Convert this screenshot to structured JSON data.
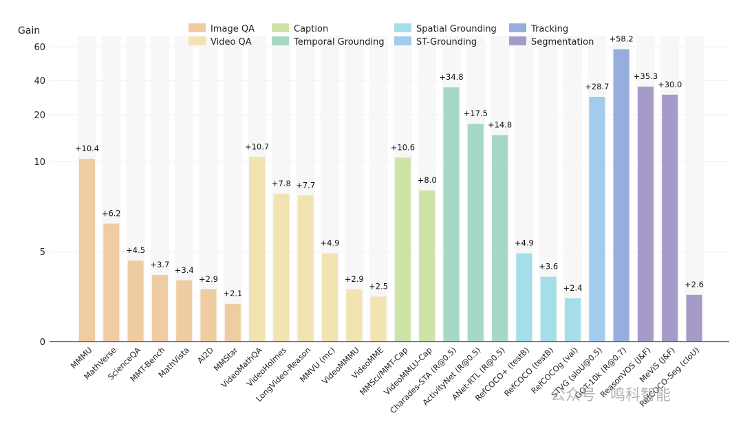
{
  "chart_data": {
    "type": "bar",
    "ylabel": "Gain",
    "xlabel": "",
    "yscale": "piecewise-log",
    "yticks": [
      0,
      5,
      10,
      20,
      40,
      60
    ],
    "ylim": [
      0,
      60
    ],
    "grid": true,
    "legend": {
      "placement": "top-center",
      "entries": [
        {
          "name": "Image QA",
          "color": "#efcca2"
        },
        {
          "name": "Video QA",
          "color": "#f2e3b3"
        },
        {
          "name": "Caption",
          "color": "#cfe3a6"
        },
        {
          "name": "Temporal Grounding",
          "color": "#a6d9c5"
        },
        {
          "name": "Spatial Grounding",
          "color": "#a4dfe9"
        },
        {
          "name": "ST-Grounding",
          "color": "#a3cbee"
        },
        {
          "name": "Tracking",
          "color": "#97aedc"
        },
        {
          "name": "Segmentation",
          "color": "#a69ac9"
        }
      ]
    },
    "categories": [
      "MMMU",
      "MathVerse",
      "ScienceQA",
      "MMT-Bench",
      "MathVista",
      "AI2D",
      "MMStar",
      "VideoMathQA",
      "VideoHolmes",
      "LongVideo-Reason",
      "MMVU (mc)",
      "VideoMMMU",
      "VideoMME",
      "MMSci/MMT-Cap",
      "VideoMMLU-Cap",
      "Charades-STA (R@0.5)",
      "ActivityNet (R@0.5)",
      "ANet-RTL (R@0.5)",
      "RefCOCO+ (testB)",
      "RefCOCO (testB)",
      "RefCOCOg (val)",
      "STVG (sIoU@0.5)",
      "GOT-10k (R@0.7)",
      "ReasonVOS (J&F)",
      "MeViS (J&F)",
      "RefCOCO-Seg (cIoU)"
    ],
    "values": [
      10.4,
      6.2,
      4.5,
      3.7,
      3.4,
      2.9,
      2.1,
      10.7,
      7.8,
      7.7,
      4.9,
      2.9,
      2.5,
      10.6,
      8.0,
      34.8,
      17.5,
      14.8,
      4.9,
      3.6,
      2.4,
      28.7,
      58.2,
      35.3,
      30.0,
      2.6
    ],
    "data_labels": [
      "+10.4",
      "+6.2",
      "+4.5",
      "+3.7",
      "+3.4",
      "+2.9",
      "+2.1",
      "+10.7",
      "+7.8",
      "+7.7",
      "+4.9",
      "+2.9",
      "+2.5",
      "+10.6",
      "+8.0",
      "+34.8",
      "+17.5",
      "+14.8",
      "+4.9",
      "+3.6",
      "+2.4",
      "+28.7",
      "+58.2",
      "+35.3",
      "+30.0",
      "+2.6"
    ],
    "groups": [
      "Image QA",
      "Image QA",
      "Image QA",
      "Image QA",
      "Image QA",
      "Image QA",
      "Image QA",
      "Video QA",
      "Video QA",
      "Video QA",
      "Video QA",
      "Video QA",
      "Video QA",
      "Caption",
      "Caption",
      "Temporal Grounding",
      "Temporal Grounding",
      "Temporal Grounding",
      "Spatial Grounding",
      "Spatial Grounding",
      "Spatial Grounding",
      "ST-Grounding",
      "Tracking",
      "Segmentation",
      "Segmentation",
      "Segmentation"
    ]
  },
  "watermark": "公众号 · 鸣科智能"
}
